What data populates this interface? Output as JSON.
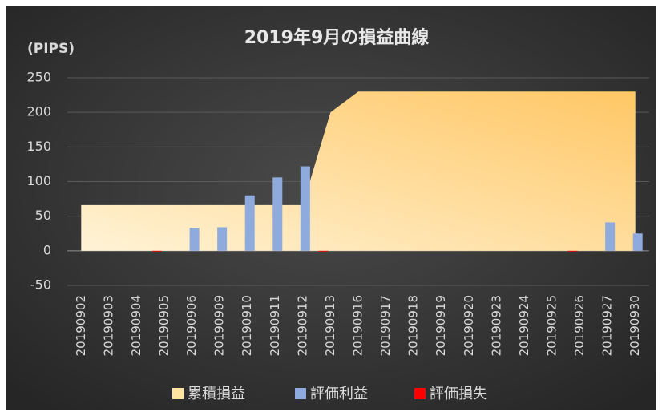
{
  "chart_data": {
    "type": "combo",
    "title": "2019年9月の損益曲線",
    "y_label": "(PIPS)",
    "categories": [
      "20190902",
      "20190903",
      "20190904",
      "20190905",
      "20190906",
      "20190909",
      "20190910",
      "20190911",
      "20190912",
      "20190913",
      "20190916",
      "20190917",
      "20190918",
      "20190919",
      "20190920",
      "20190923",
      "20190924",
      "20190925",
      "20190926",
      "20190927",
      "20190930"
    ],
    "series": [
      {
        "name": "累積損益",
        "type": "area",
        "color": "#ffe3a0",
        "values": [
          66,
          66,
          66,
          66,
          66,
          66,
          66,
          66,
          66,
          200,
          230,
          230,
          230,
          230,
          230,
          230,
          230,
          230,
          230,
          230,
          230
        ]
      },
      {
        "name": "評価利益",
        "type": "bar",
        "color": "#8faadc",
        "values": [
          0,
          0,
          0,
          0,
          33,
          34,
          80,
          106,
          122,
          0,
          0,
          0,
          0,
          0,
          0,
          0,
          0,
          0,
          0,
          41,
          25
        ]
      },
      {
        "name": "評価損失",
        "type": "bar",
        "color": "#ff0000",
        "values": [
          0,
          0,
          0,
          -1,
          0,
          0,
          0,
          0,
          0,
          -1,
          0,
          0,
          0,
          0,
          0,
          0,
          0,
          0,
          -1,
          0,
          0
        ]
      }
    ],
    "ylim": [
      -50,
      250
    ],
    "yticks": [
      -50,
      0,
      50,
      100,
      150,
      200,
      250
    ],
    "grid": true,
    "legend": "bottom"
  }
}
